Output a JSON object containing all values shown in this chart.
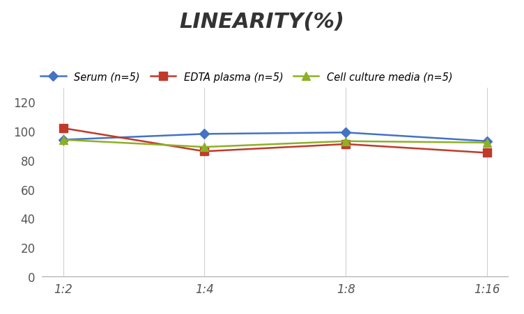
{
  "title": "LINEARITY(%)",
  "x_labels": [
    "1:2",
    "1:4",
    "1:8",
    "1:16"
  ],
  "x_positions": [
    0,
    1,
    2,
    3
  ],
  "series": [
    {
      "label": "Serum (n=5)",
      "color": "#4472C4",
      "marker": "D",
      "markersize": 7,
      "values": [
        94,
        98,
        99,
        93
      ]
    },
    {
      "label": "EDTA plasma (n=5)",
      "color": "#C0392B",
      "marker": "s",
      "markersize": 8,
      "values": [
        102,
        86,
        91,
        85
      ]
    },
    {
      "label": "Cell culture media (n=5)",
      "color": "#8DB026",
      "marker": "^",
      "markersize": 9,
      "values": [
        94,
        89,
        93,
        92
      ]
    }
  ],
  "ylim": [
    0,
    130
  ],
  "yticks": [
    0,
    20,
    40,
    60,
    80,
    100,
    120
  ],
  "background_color": "#ffffff",
  "grid_color": "#d0d0d0",
  "title_fontsize": 22,
  "legend_fontsize": 10.5,
  "tick_fontsize": 12
}
